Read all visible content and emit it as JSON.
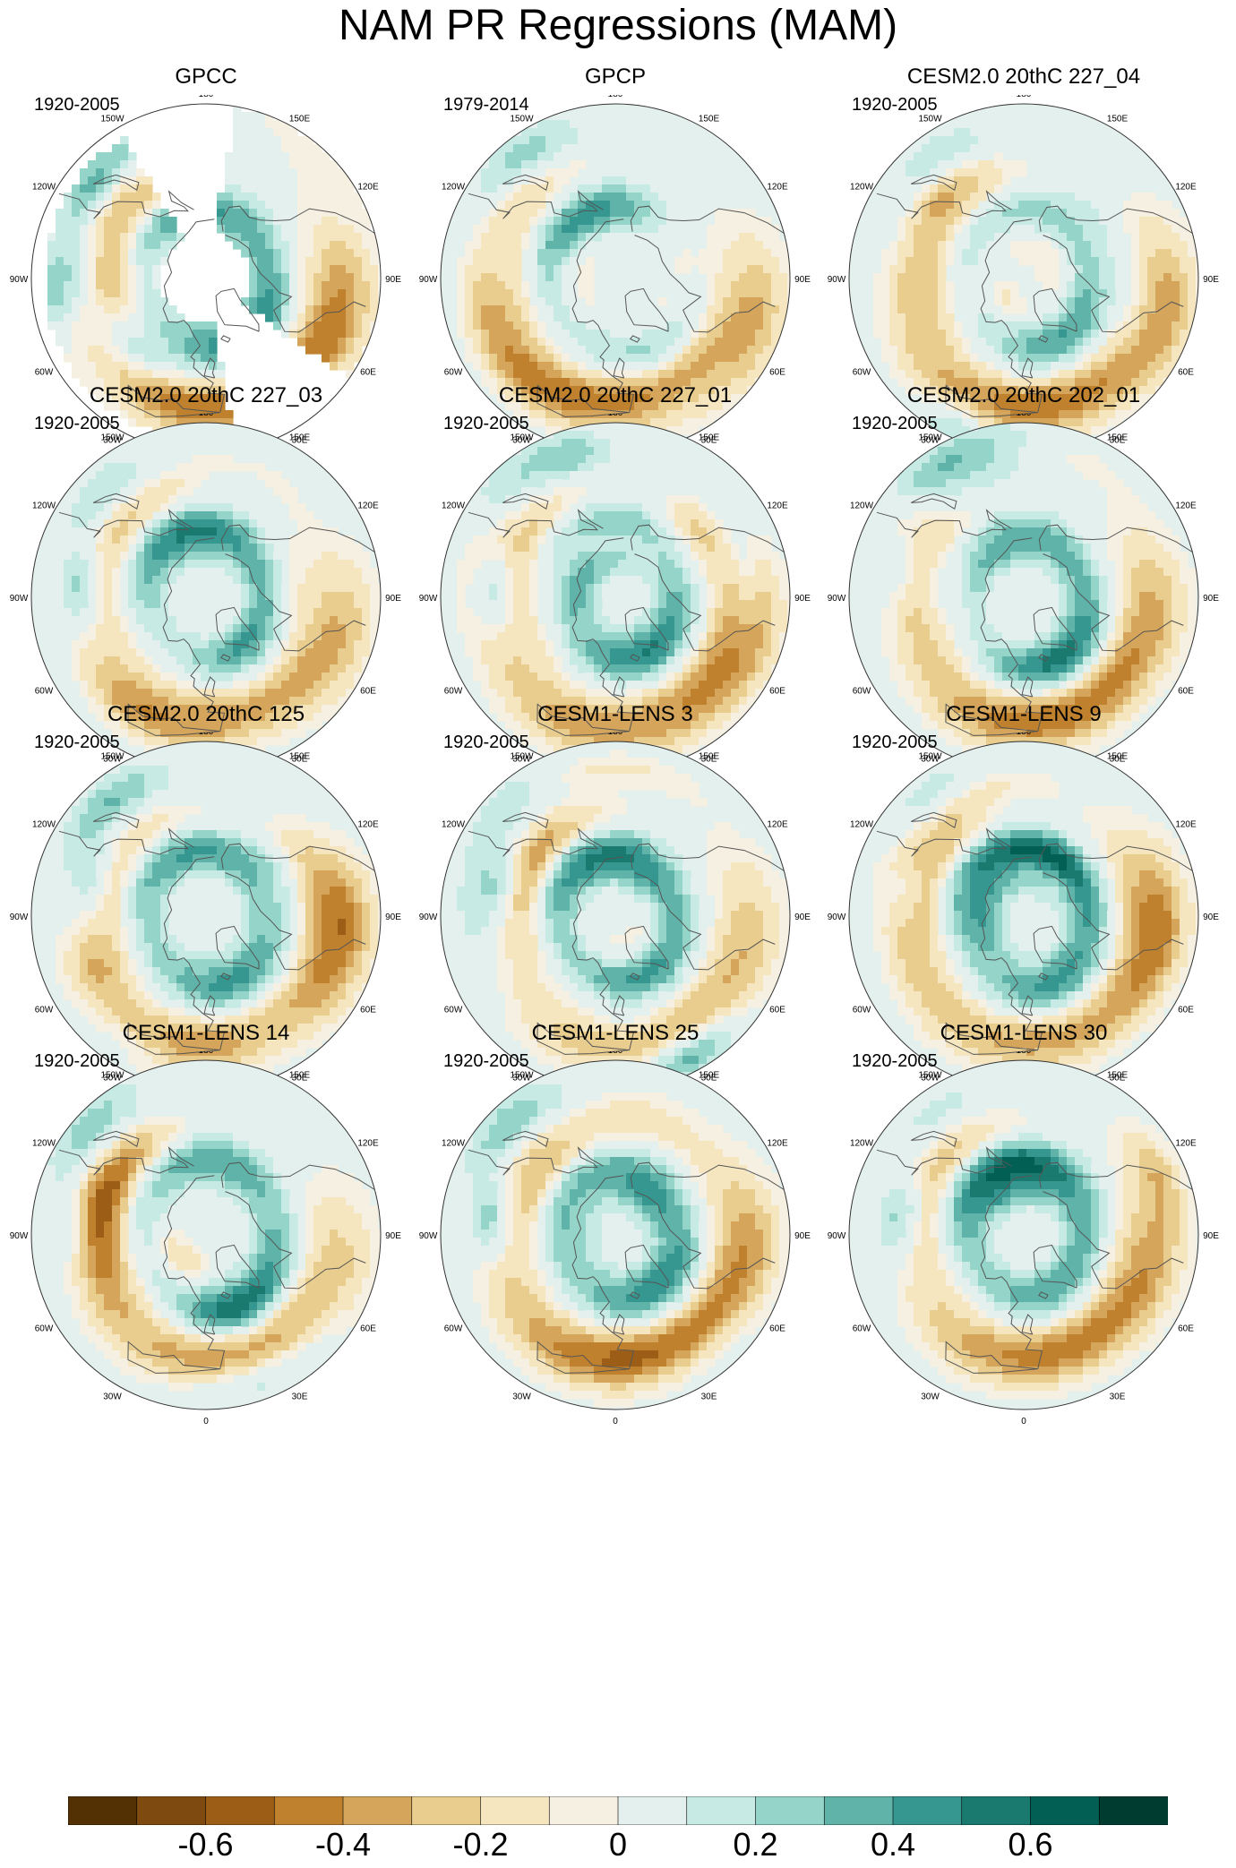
{
  "title": "NAM PR Regressions (MAM)",
  "panels": [
    {
      "title": "GPCC",
      "period": "1920-2005",
      "pattern": "obs_sparse",
      "seed": 11
    },
    {
      "title": "GPCP",
      "period": "1979-2014",
      "pattern": "obs",
      "seed": 23
    },
    {
      "title": "CESM2.0 20thC 227_04",
      "period": "1920-2005",
      "pattern": "model",
      "seed": 37
    },
    {
      "title": "CESM2.0 20thC 227_03",
      "period": "1920-2005",
      "pattern": "model",
      "seed": 41
    },
    {
      "title": "CESM2.0 20thC 227_01",
      "period": "1920-2005",
      "pattern": "model",
      "seed": 53
    },
    {
      "title": "CESM2.0 20thC 202_01",
      "period": "1920-2005",
      "pattern": "model",
      "seed": 67
    },
    {
      "title": "CESM2.0 20thC 125",
      "period": "1920-2005",
      "pattern": "model",
      "seed": 71
    },
    {
      "title": "CESM1-LENS 3",
      "period": "1920-2005",
      "pattern": "model",
      "seed": 83
    },
    {
      "title": "CESM1-LENS 9",
      "period": "1920-2005",
      "pattern": "model",
      "seed": 97
    },
    {
      "title": "CESM1-LENS 14",
      "period": "1920-2005",
      "pattern": "model",
      "seed": 101
    },
    {
      "title": "CESM1-LENS 25",
      "period": "1920-2005",
      "pattern": "model",
      "seed": 113
    },
    {
      "title": "CESM1-LENS 30",
      "period": "1920-2005",
      "pattern": "model",
      "seed": 127
    }
  ],
  "longitude_labels": [
    "180",
    "150E",
    "120E",
    "90E",
    "60E",
    "30E",
    "0",
    "30W",
    "60W",
    "90W",
    "120W",
    "150W"
  ],
  "colorbar": {
    "colors": [
      "#543005",
      "#7f4a0f",
      "#9c5e17",
      "#bf812d",
      "#d4a55a",
      "#e8cd8f",
      "#f5e6c0",
      "#f6f0e2",
      "#e4f0ee",
      "#c7eae5",
      "#95d4c8",
      "#5fb3a8",
      "#35978f",
      "#1b7a70",
      "#015f54",
      "#003c30"
    ],
    "tick_labels": [
      "-0.6",
      "-0.4",
      "-0.2",
      "0",
      "0.2",
      "0.4",
      "0.6"
    ],
    "tick_values": [
      -0.6,
      -0.4,
      -0.2,
      0,
      0.2,
      0.4,
      0.6
    ],
    "range": [
      -0.8,
      0.8
    ]
  },
  "colors": {
    "coast": "#555555",
    "outline": "#333333"
  }
}
